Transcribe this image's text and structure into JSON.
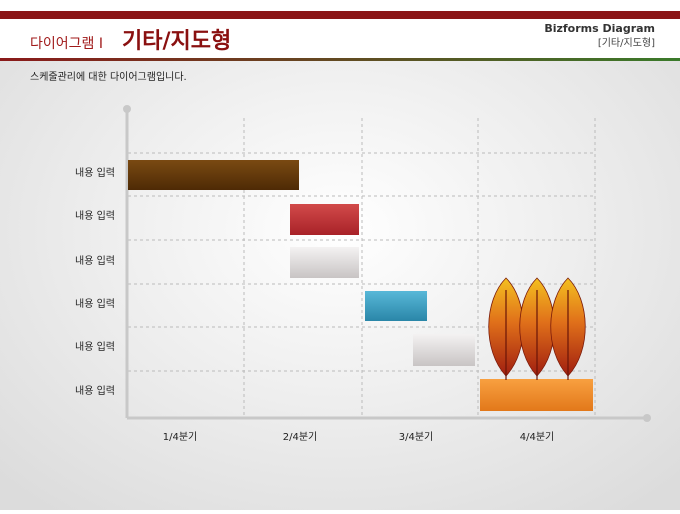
{
  "header": {
    "title_prefix": "다이어그램 I",
    "title": "기타/지도형",
    "brand": "Bizforms Diagram",
    "brand_sub": "[기타/지도형]"
  },
  "subtitle": "스케줄관리에 대한 다이어그램입니다.",
  "tasks": [
    "내용 입력",
    "내용 입력",
    "내용 입력",
    "내용 입력",
    "내용 입력",
    "내용 입력"
  ],
  "quarters": [
    "1/4분기",
    "2/4분기",
    "3/4분기",
    "4/4분기"
  ]
}
